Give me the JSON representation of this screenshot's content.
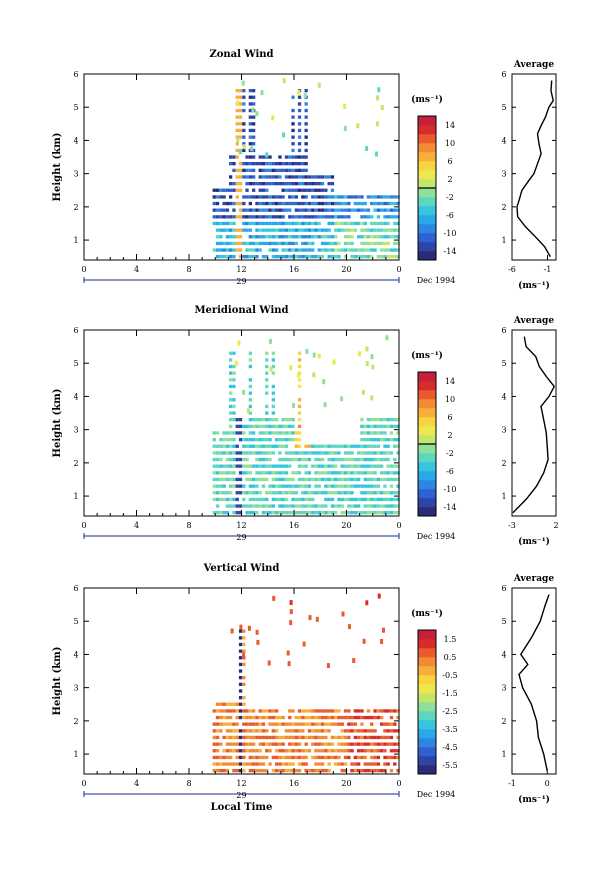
{
  "units_label": "(ms⁻¹)",
  "x_unit_label": "(ms⁻¹)",
  "date_label": "29",
  "month_label": "Dec 1994",
  "ylabel": "Height (km)",
  "xlabel_bottom": "Local Time",
  "chart_data": [
    {
      "type": "heatmap",
      "title": "Zonal Wind",
      "x_ticks": [
        "0",
        "4",
        "8",
        "12",
        "16",
        "20",
        "0"
      ],
      "y_ticks": [
        "1",
        "2",
        "3",
        "4",
        "5",
        "6"
      ],
      "xlim": [
        0,
        24
      ],
      "ylim": [
        0.4,
        6
      ],
      "colorbar_ticks": [
        "14",
        "10",
        "6",
        "2",
        "-2",
        "-6",
        "-10",
        "-14"
      ],
      "colorbar_range": [
        -16,
        16
      ],
      "average": {
        "title": "Average",
        "x_ticks": [
          "-6",
          "-1"
        ],
        "xlim": [
          -6,
          0.2
        ],
        "y_ticks": [
          "1",
          "2",
          "3",
          "4",
          "5",
          "6"
        ],
        "ylim": [
          0.4,
          6
        ],
        "profile": [
          [
            -0.6,
            0.5
          ],
          [
            -1.4,
            0.8
          ],
          [
            -2.7,
            1.1
          ],
          [
            -4.1,
            1.4
          ],
          [
            -5.2,
            1.7
          ],
          [
            -5.3,
            2.0
          ],
          [
            -5.0,
            2.2
          ],
          [
            -4.6,
            2.5
          ],
          [
            -3.6,
            2.8
          ],
          [
            -2.9,
            3.0
          ],
          [
            -2.4,
            3.3
          ],
          [
            -1.9,
            3.6
          ],
          [
            -2.2,
            3.9
          ],
          [
            -2.4,
            4.2
          ],
          [
            -2.0,
            4.4
          ],
          [
            -1.3,
            4.7
          ],
          [
            -0.8,
            5.0
          ],
          [
            -0.2,
            5.2
          ],
          [
            -0.5,
            5.5
          ],
          [
            -0.4,
            5.8
          ]
        ]
      }
    },
    {
      "type": "heatmap",
      "title": "Meridional Wind",
      "x_ticks": [
        "0",
        "4",
        "8",
        "12",
        "16",
        "20",
        "0"
      ],
      "y_ticks": [
        "1",
        "2",
        "3",
        "4",
        "5",
        "6"
      ],
      "xlim": [
        0,
        24
      ],
      "ylim": [
        0.4,
        6
      ],
      "colorbar_ticks": [
        "14",
        "10",
        "6",
        "2",
        "-2",
        "-6",
        "-10",
        "-14"
      ],
      "colorbar_range": [
        -16,
        16
      ],
      "average": {
        "title": "Average",
        "x_ticks": [
          "-3",
          "2"
        ],
        "xlim": [
          -3,
          2
        ],
        "y_ticks": [
          "1",
          "2",
          "3",
          "4",
          "5",
          "6"
        ],
        "ylim": [
          0.4,
          6
        ],
        "profile": [
          [
            -2.9,
            0.5
          ],
          [
            -1.4,
            0.9
          ],
          [
            -0.2,
            1.3
          ],
          [
            0.6,
            1.7
          ],
          [
            1.1,
            2.1
          ],
          [
            1.0,
            2.5
          ],
          [
            0.9,
            2.9
          ],
          [
            0.6,
            3.3
          ],
          [
            0.3,
            3.7
          ],
          [
            1.2,
            4.0
          ],
          [
            1.8,
            4.3
          ],
          [
            0.9,
            4.6
          ],
          [
            0.1,
            4.9
          ],
          [
            -0.3,
            5.2
          ],
          [
            -1.4,
            5.5
          ],
          [
            -1.6,
            5.8
          ]
        ]
      }
    },
    {
      "type": "heatmap",
      "title": "Vertical Wind",
      "x_ticks": [
        "0",
        "4",
        "8",
        "12",
        "16",
        "20",
        "0"
      ],
      "y_ticks": [
        "1",
        "2",
        "3",
        "4",
        "5",
        "6"
      ],
      "xlim": [
        0,
        24
      ],
      "ylim": [
        0.4,
        6
      ],
      "colorbar_ticks": [
        "1.5",
        "0.5",
        "-0.5",
        "-1.5",
        "-2.5",
        "-3.5",
        "-4.5",
        "-5.5"
      ],
      "colorbar_range": [
        -6,
        2
      ],
      "average": {
        "title": "Average",
        "x_ticks": [
          "-1",
          "0"
        ],
        "xlim": [
          -1,
          0.25
        ],
        "y_ticks": [
          "1",
          "2",
          "3",
          "4",
          "5",
          "6"
        ],
        "ylim": [
          0.4,
          6
        ],
        "profile": [
          [
            0.0,
            0.5
          ],
          [
            -0.1,
            1.0
          ],
          [
            -0.25,
            1.5
          ],
          [
            -0.3,
            2.0
          ],
          [
            -0.45,
            2.5
          ],
          [
            -0.7,
            3.0
          ],
          [
            -0.8,
            3.4
          ],
          [
            -0.55,
            3.7
          ],
          [
            -0.75,
            4.0
          ],
          [
            -0.45,
            4.5
          ],
          [
            -0.2,
            5.0
          ],
          [
            -0.05,
            5.5
          ],
          [
            0.05,
            5.8
          ]
        ]
      }
    }
  ]
}
